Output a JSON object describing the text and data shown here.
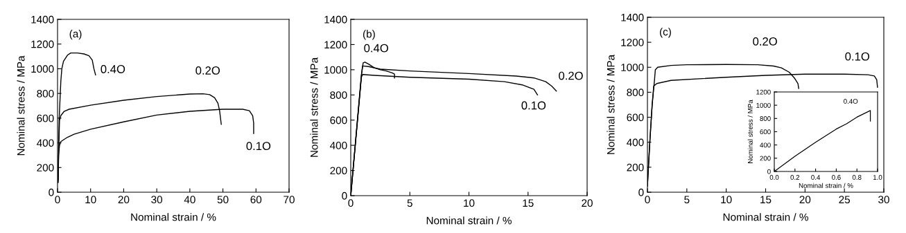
{
  "chart_data": [
    {
      "type": "line",
      "xlabel": "Nominal strain / %",
      "ylabel": "Nominal stress / MPa",
      "xlim": [
        0,
        70
      ],
      "ylim": [
        0,
        1400
      ],
      "xticks": [
        0,
        10,
        20,
        30,
        40,
        50,
        60,
        70
      ],
      "yticks": [
        0,
        200,
        400,
        600,
        800,
        1000,
        1200,
        1400
      ],
      "grid": false,
      "series": [
        {
          "name": "0.4O",
          "color": "#000000",
          "x": [
            0.2,
            0.3,
            0.5,
            1,
            1.3,
            1.8,
            3,
            4,
            6,
            8,
            9.5,
            10.5,
            11,
            11.5
          ],
          "values": [
            80,
            300,
            600,
            900,
            1000,
            1060,
            1110,
            1128,
            1128,
            1120,
            1105,
            1070,
            1000,
            950
          ]
        },
        {
          "name": "0.2O",
          "color": "#000000",
          "x": [
            0.2,
            0.4,
            0.6,
            1,
            2,
            3.5,
            10,
            20,
            30,
            40,
            44,
            46,
            47.5,
            48.5,
            49,
            49.5
          ],
          "values": [
            100,
            400,
            580,
            620,
            655,
            672,
            705,
            745,
            775,
            795,
            797,
            790,
            765,
            720,
            660,
            550
          ]
        },
        {
          "name": "0.1O",
          "color": "#000000",
          "x": [
            0.1,
            0.3,
            0.6,
            1,
            3,
            5,
            10,
            20,
            30,
            40,
            50,
            56,
            58,
            59,
            59.3,
            59.3
          ],
          "values": [
            80,
            300,
            380,
            410,
            445,
            470,
            510,
            570,
            625,
            655,
            672,
            672,
            660,
            620,
            560,
            475
          ]
        }
      ],
      "annotations": [
        "(a)"
      ]
    },
    {
      "type": "line",
      "xlabel": "Nominal strain / %",
      "ylabel": "Nominal stress / MPa",
      "xlim": [
        0,
        20
      ],
      "ylim": [
        0,
        1400
      ],
      "xticks": [
        0,
        5,
        10,
        15,
        20
      ],
      "yticks": [
        0,
        200,
        400,
        600,
        800,
        1000,
        1200,
        1400
      ],
      "grid": false,
      "series": [
        {
          "name": "0.4O",
          "color": "#000000",
          "x": [
            0,
            0.9,
            1.05,
            1.2,
            1.5,
            2,
            2.5,
            3,
            3.5,
            3.7,
            3.7
          ],
          "values": [
            0,
            960,
            1055,
            1060,
            1045,
            1015,
            1000,
            990,
            975,
            965,
            935
          ]
        },
        {
          "name": "0.2O",
          "color": "#000000",
          "x": [
            0,
            0.9,
            1,
            1.5,
            2.5,
            5,
            10,
            14,
            15.5,
            16.5,
            17,
            17.4
          ],
          "values": [
            0,
            950,
            1030,
            1025,
            1005,
            990,
            970,
            950,
            935,
            905,
            870,
            830
          ]
        },
        {
          "name": "0.1O",
          "color": "#000000",
          "x": [
            0,
            0.9,
            1,
            2,
            5,
            10,
            13,
            14.5,
            15.5,
            15.8
          ],
          "values": [
            0,
            940,
            962,
            955,
            940,
            925,
            905,
            880,
            845,
            800
          ]
        }
      ],
      "annotations": [
        "(b)"
      ]
    },
    {
      "type": "line",
      "xlabel": "Nominal strain / %",
      "ylabel": "Nominal stress / MPa",
      "xlim": [
        0,
        30
      ],
      "ylim": [
        0,
        1400
      ],
      "xticks": [
        0,
        5,
        10,
        15,
        20,
        25,
        30
      ],
      "yticks": [
        0,
        200,
        400,
        600,
        800,
        1000,
        1200,
        1400
      ],
      "grid": false,
      "series": [
        {
          "name": "0.2O",
          "color": "#000000",
          "x": [
            0,
            0.3,
            0.6,
            0.9,
            1,
            1.3,
            3,
            5,
            10,
            14,
            16,
            17,
            18,
            18.7,
            19.1,
            19.2
          ],
          "values": [
            50,
            400,
            700,
            900,
            980,
            1000,
            1015,
            1020,
            1022,
            1020,
            1010,
            995,
            960,
            910,
            870,
            830
          ]
        },
        {
          "name": "0.1O",
          "color": "#000000",
          "x": [
            0,
            0.3,
            0.6,
            0.8,
            1.2,
            3,
            10,
            15,
            20,
            25,
            28,
            28.8,
            29.1,
            29.2
          ],
          "values": [
            50,
            400,
            700,
            850,
            870,
            895,
            920,
            935,
            945,
            945,
            940,
            930,
            900,
            840
          ]
        }
      ],
      "annotations": [
        "(c)"
      ]
    },
    {
      "type": "line",
      "xlabel": "Nominal strain / %",
      "ylabel": "Nominal stress / MPa",
      "xlim": [
        0,
        1
      ],
      "ylim": [
        0,
        1200
      ],
      "xticks": [
        {
          "value": 0,
          "label": "0.0"
        },
        0.2,
        0.4,
        0.6,
        0.8,
        {
          "value": 1,
          "label": "1.0"
        }
      ],
      "yticks": [
        0,
        200,
        400,
        600,
        800,
        1000,
        1200
      ],
      "grid": false,
      "series": [
        {
          "name": "0.4O",
          "color": "#000000",
          "x": [
            0,
            0.2,
            0.4,
            0.6,
            0.7,
            0.8,
            0.93,
            0.93
          ],
          "values": [
            0,
            230,
            440,
            640,
            720,
            820,
            920,
            760
          ]
        }
      ]
    }
  ]
}
